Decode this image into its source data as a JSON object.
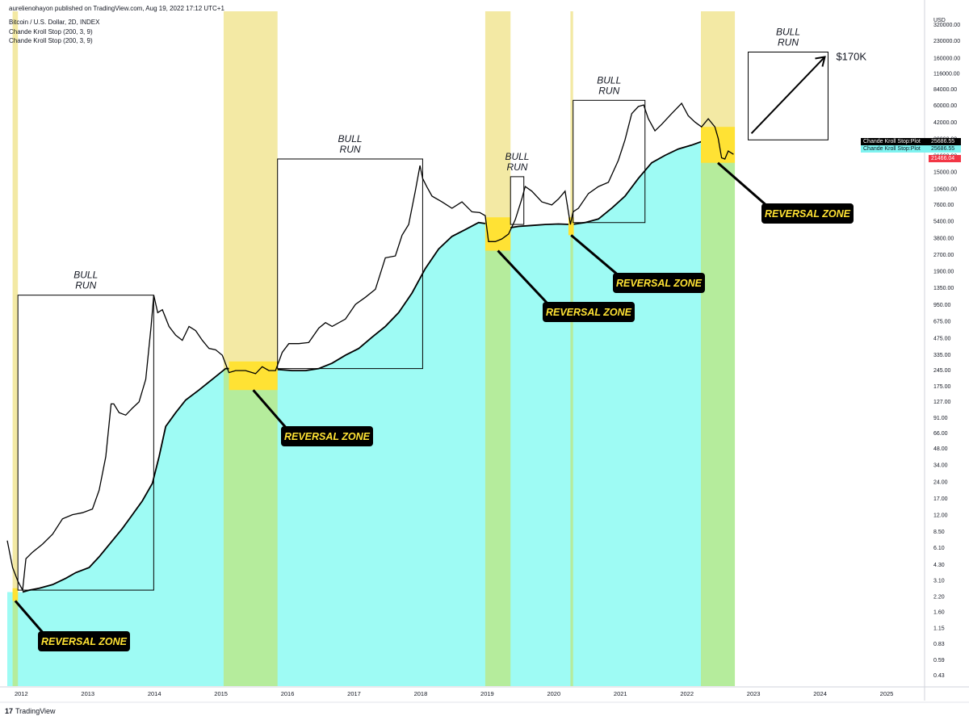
{
  "header": {
    "publisher": "aurelienohayon published on TradingView.com, Aug 19, 2022 17:12 UTC+1",
    "symbol": "Bitcoin / U.S. Dollar, 2D, INDEX",
    "indicator1": "Chande Kroll Stop (200, 3, 9)",
    "indicator2": "Chande Kroll Stop (200, 3, 9)"
  },
  "footer": {
    "logo_text": "TradingView"
  },
  "price_tags": [
    {
      "label": "Chande Kroll Stop:Plot",
      "value": "25686.55",
      "color": "#000000"
    },
    {
      "label": "Chande Kroll Stop:Plot",
      "value": "25686.55",
      "color": "#7ff3f0"
    },
    {
      "label": "",
      "value": "21466.04",
      "color": "#f23645"
    }
  ],
  "annotations": {
    "bull_run_label": [
      "BULL",
      "RUN"
    ],
    "reversal_label": "REVERSAL ZONE",
    "target_label": "$170K"
  },
  "colors": {
    "stop_fill": "#9efbf4",
    "stop_fill_green": "#b5ec9c",
    "bear_band": "#f3e9a4",
    "reversal_box": "#ffe234",
    "price_line": "#000000",
    "callout_bg": "#000000",
    "callout_text": "#ffe234"
  },
  "chart_data": {
    "type": "line",
    "title": "",
    "xlabel": "",
    "ylabel": "USD",
    "scale": "log",
    "ylim": [
      0.34,
      420000
    ],
    "xlim": [
      2011.72,
      2025.5
    ],
    "x_ticks": [
      "2012",
      "2013",
      "2014",
      "2015",
      "2016",
      "2017",
      "2018",
      "2019",
      "2020",
      "2021",
      "2022",
      "2023",
      "2024",
      "2025"
    ],
    "y_ticks": [
      "320000.00",
      "230000.00",
      "160000.00",
      "116000.00",
      "84000.00",
      "60000.00",
      "42000.00",
      "30000.00",
      "21000.00",
      "15000.00",
      "10600.00",
      "7600.00",
      "5400.00",
      "3800.00",
      "2700.00",
      "1900.00",
      "1350.00",
      "950.00",
      "675.00",
      "475.00",
      "335.00",
      "245.00",
      "175.00",
      "127.00",
      "91.00",
      "66.00",
      "48.00",
      "34.00",
      "24.00",
      "17.00",
      "12.00",
      "8.50",
      "6.10",
      "4.30",
      "3.10",
      "2.20",
      "1.60",
      "1.15",
      "0.83",
      "0.59",
      "0.43"
    ],
    "series": [
      {
        "name": "Bitcoin / U.S. Dollar",
        "x": [
          2011.72,
          2011.8,
          2011.88,
          2011.95,
          2012.0,
          2012.1,
          2012.25,
          2012.4,
          2012.55,
          2012.7,
          2012.85,
          2013.0,
          2013.1,
          2013.2,
          2013.28,
          2013.32,
          2013.4,
          2013.5,
          2013.6,
          2013.7,
          2013.8,
          2013.88,
          2013.92,
          2013.98,
          2014.05,
          2014.15,
          2014.25,
          2014.35,
          2014.45,
          2014.55,
          2014.65,
          2014.75,
          2014.85,
          2014.95,
          2015.05,
          2015.15,
          2015.3,
          2015.45,
          2015.55,
          2015.65,
          2015.75,
          2015.85,
          2015.95,
          2016.1,
          2016.25,
          2016.4,
          2016.5,
          2016.6,
          2016.8,
          2016.95,
          2017.1,
          2017.25,
          2017.4,
          2017.55,
          2017.65,
          2017.75,
          2017.85,
          2017.92,
          2017.96,
          2018.02,
          2018.1,
          2018.25,
          2018.4,
          2018.55,
          2018.7,
          2018.82,
          2018.9,
          2018.95,
          2019.05,
          2019.15,
          2019.25,
          2019.35,
          2019.45,
          2019.5,
          2019.6,
          2019.75,
          2019.9,
          2020.0,
          2020.1,
          2020.18,
          2020.22,
          2020.3,
          2020.45,
          2020.6,
          2020.75,
          2020.9,
          2021.0,
          2021.1,
          2021.2,
          2021.28,
          2021.35,
          2021.45,
          2021.55,
          2021.7,
          2021.85,
          2021.95,
          2022.05,
          2022.15,
          2022.25,
          2022.35,
          2022.4,
          2022.45,
          2022.5,
          2022.55,
          2022.63
        ],
        "y": [
          7,
          4,
          3,
          2.5,
          4.8,
          5.5,
          6.5,
          8,
          11,
          12,
          12.5,
          13.5,
          20,
          40,
          120,
          120,
          100,
          95,
          110,
          125,
          200,
          600,
          1150,
          800,
          850,
          600,
          500,
          450,
          600,
          550,
          450,
          380,
          370,
          330,
          230,
          240,
          240,
          225,
          260,
          240,
          240,
          350,
          420,
          420,
          430,
          580,
          650,
          600,
          700,
          950,
          1100,
          1300,
          2500,
          2600,
          4000,
          5000,
          10000,
          17000,
          13000,
          11000,
          9000,
          8000,
          7000,
          8000,
          6500,
          6400,
          6000,
          3500,
          3500,
          3700,
          4100,
          5500,
          8500,
          11000,
          10000,
          8000,
          7500,
          8500,
          10000,
          5000,
          6500,
          7000,
          9500,
          11000,
          12000,
          19000,
          29000,
          50000,
          58000,
          60000,
          45000,
          35000,
          40000,
          50000,
          62000,
          48000,
          42000,
          38000,
          45000,
          38000,
          30000,
          20000,
          19500,
          23000,
          21466
        ]
      },
      {
        "name": "Chande Kroll Stop:Plot",
        "x": [
          2011.95,
          2012.05,
          2012.2,
          2012.4,
          2012.6,
          2012.75,
          2012.95,
          2013.1,
          2013.3,
          2013.45,
          2013.6,
          2013.75,
          2013.9,
          2014.0,
          2014.1,
          2014.25,
          2014.4,
          2014.6,
          2014.8,
          2015.0,
          2015.2,
          2015.4,
          2015.6,
          2015.8,
          2016.0,
          2016.2,
          2016.4,
          2016.6,
          2016.8,
          2017.0,
          2017.2,
          2017.4,
          2017.6,
          2017.8,
          2018.0,
          2018.2,
          2018.4,
          2018.6,
          2018.8,
          2019.0,
          2019.2,
          2019.4,
          2019.6,
          2019.8,
          2020.0,
          2020.2,
          2020.4,
          2020.6,
          2020.8,
          2021.0,
          2021.2,
          2021.4,
          2021.6,
          2021.8,
          2022.0,
          2022.15,
          2022.25,
          2022.3
        ],
        "y": [
          2.4,
          2.5,
          2.6,
          2.8,
          3.2,
          3.6,
          4,
          5,
          7,
          9,
          12,
          16,
          23,
          40,
          75,
          100,
          130,
          160,
          200,
          250,
          250,
          250,
          250,
          245,
          240,
          240,
          250,
          280,
          330,
          380,
          480,
          600,
          800,
          1200,
          2000,
          3000,
          3900,
          4500,
          5200,
          5000,
          4600,
          4800,
          4900,
          5000,
          5050,
          5000,
          5200,
          5600,
          7000,
          9000,
          13000,
          18000,
          21000,
          24000,
          26000,
          28000,
          29000,
          25686
        ]
      }
    ],
    "bear_bands": [
      [
        2011.8,
        2011.88
      ],
      [
        2014.97,
        2015.78
      ],
      [
        2018.9,
        2019.28
      ],
      [
        2020.18,
        2020.22
      ],
      [
        2022.14,
        2022.65
      ]
    ],
    "reversal_zones": [
      {
        "x": [
          2011.8,
          2011.88
        ],
        "y": [
          2.0,
          2.6
        ]
      },
      {
        "x": [
          2015.05,
          2015.78
        ],
        "y": [
          160,
          290
        ]
      },
      {
        "x": [
          2018.9,
          2019.28
        ],
        "y": [
          2900,
          5800
        ]
      },
      {
        "x": [
          2020.15,
          2020.23
        ],
        "y": [
          4000,
          5800
        ]
      },
      {
        "x": [
          2022.14,
          2022.65
        ],
        "y": [
          18000,
          38000
        ]
      }
    ],
    "bull_run_boxes": [
      {
        "x": [
          2011.88,
          2013.92
        ],
        "y": [
          2.5,
          1150
        ]
      },
      {
        "x": [
          2015.78,
          2017.96
        ],
        "y": [
          250,
          19500
        ]
      },
      {
        "x": [
          2019.28,
          2019.48
        ],
        "y": [
          5000,
          13500
        ]
      },
      {
        "x": [
          2020.22,
          2021.3
        ],
        "y": [
          5200,
          66000
        ]
      },
      {
        "x": [
          2022.85,
          2024.05
        ],
        "y": [
          29000,
          180000
        ]
      }
    ]
  }
}
